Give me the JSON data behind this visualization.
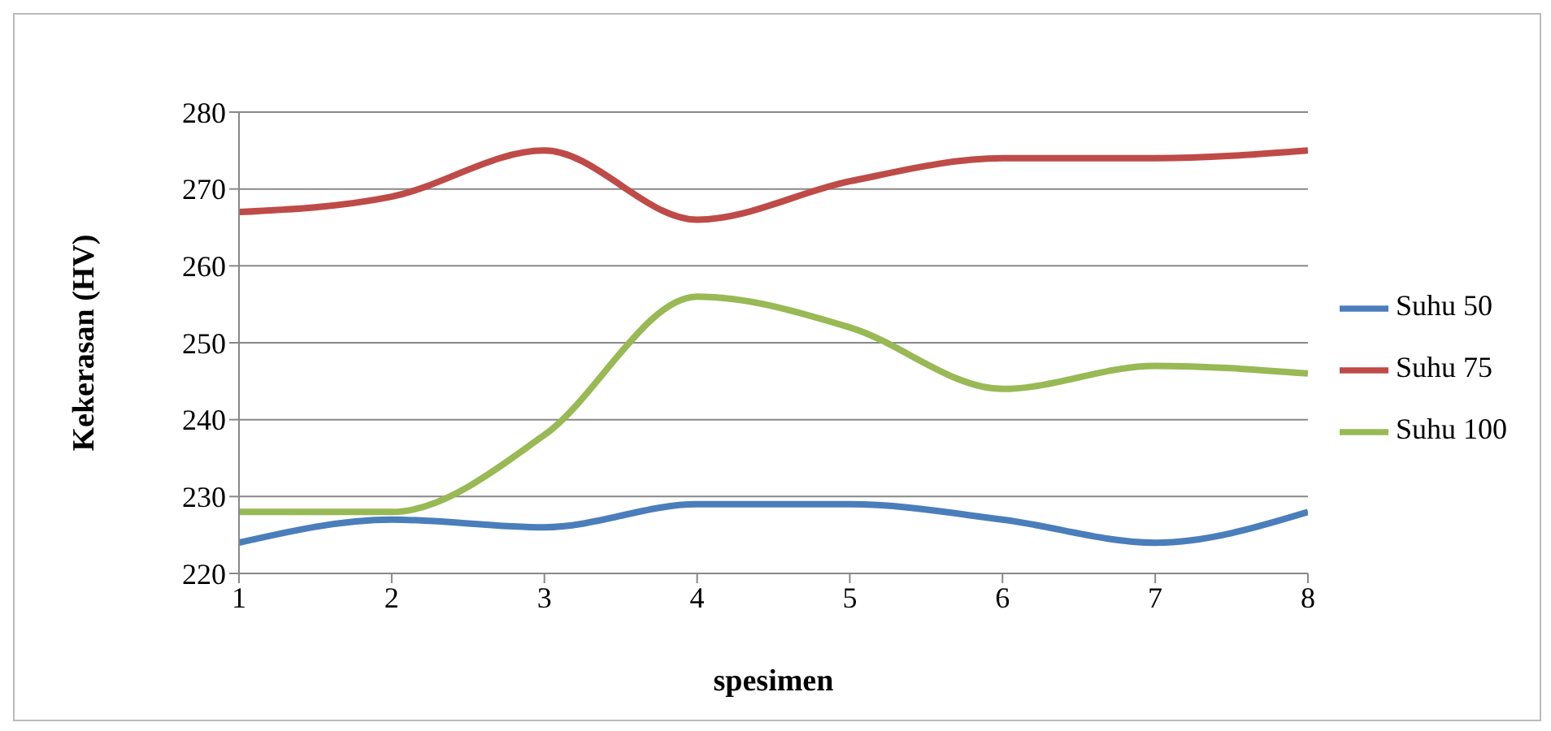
{
  "chart_data": {
    "type": "line",
    "xlabel": "spesimen",
    "ylabel": "Kekerasan (HV)",
    "x": [
      1,
      2,
      3,
      4,
      5,
      6,
      7,
      8
    ],
    "xlim": [
      1,
      8
    ],
    "xticks": [
      1,
      2,
      3,
      4,
      5,
      6,
      7,
      8
    ],
    "ylim": [
      220,
      280
    ],
    "yticks": [
      220,
      230,
      240,
      250,
      260,
      270,
      280
    ],
    "grid": "y",
    "legend": "right",
    "marker": "none",
    "line_style": "solid",
    "series": [
      {
        "name": "Suhu 50",
        "color": "#4a7ebb",
        "values": [
          224,
          227,
          226,
          229,
          229,
          227,
          224,
          228
        ]
      },
      {
        "name": "Suhu 75",
        "color": "#be4b48",
        "values": [
          267,
          269,
          275,
          266,
          271,
          274,
          274,
          275
        ]
      },
      {
        "name": "Suhu 100",
        "color": "#98b954",
        "values": [
          228,
          228,
          238,
          256,
          252,
          244,
          247,
          246
        ]
      }
    ]
  }
}
